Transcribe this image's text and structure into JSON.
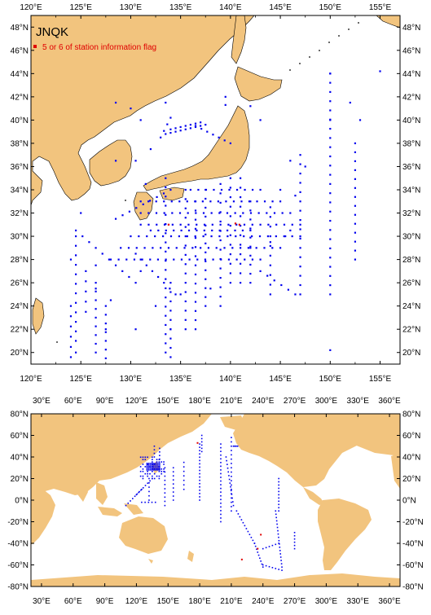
{
  "regional_map": {
    "title": "JNQK",
    "legend": {
      "text": "5 or 6 of station information flag",
      "color": "#e00000"
    },
    "x_ticks": [
      "120°E",
      "125°E",
      "130°E",
      "135°E",
      "140°E",
      "145°E",
      "150°E",
      "155°E"
    ],
    "y_ticks": [
      "20°N",
      "22°N",
      "24°N",
      "26°N",
      "28°N",
      "30°N",
      "32°N",
      "34°N",
      "36°N",
      "38°N",
      "40°N",
      "42°N",
      "44°N",
      "46°N",
      "48°N"
    ],
    "lon_range": [
      120,
      157
    ],
    "lat_range": [
      19,
      49
    ],
    "land_color": "#f2c47e",
    "station_color": "#0000ee"
  },
  "global_map": {
    "x_ticks": [
      "30°E",
      "60°E",
      "90°E",
      "120°E",
      "150°E",
      "180°E",
      "210°E",
      "240°E",
      "270°E",
      "300°E",
      "330°E",
      "360°E"
    ],
    "y_ticks": [
      "-80°N",
      "-60°N",
      "-40°N",
      "-20°N",
      "0°N",
      "20°N",
      "40°N",
      "60°N",
      "80°N"
    ],
    "lon_range": [
      20,
      370
    ],
    "lat_range": [
      -80,
      80
    ],
    "land_color": "#f2c47e",
    "station_color": "#0000ee",
    "flag_color": "#e00000"
  }
}
